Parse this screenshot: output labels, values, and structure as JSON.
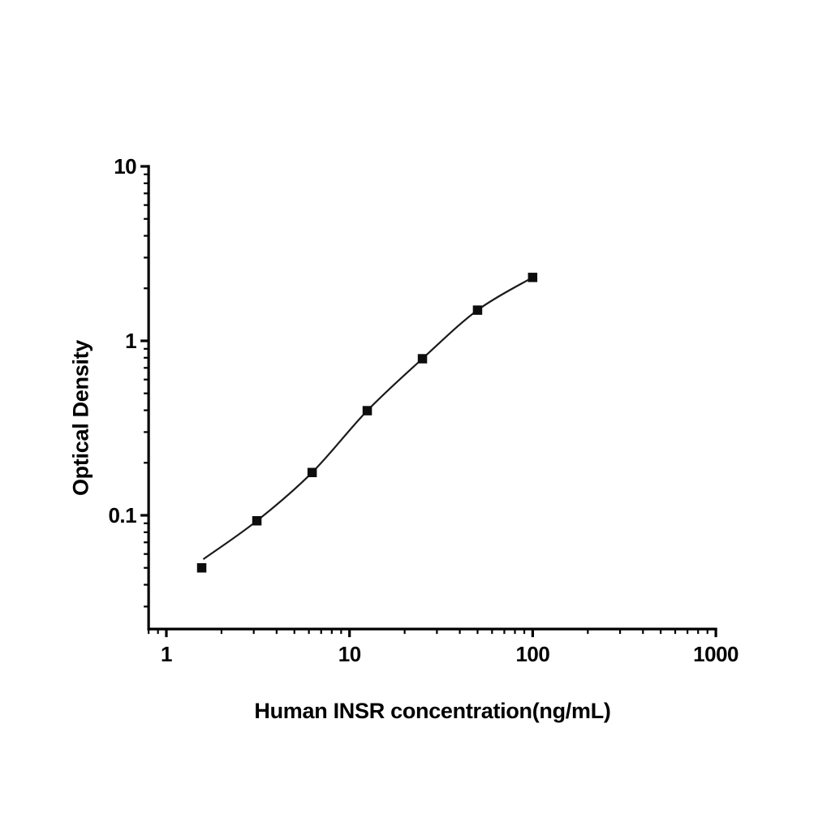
{
  "chart_data": {
    "type": "scatter",
    "title": "",
    "xlabel": "Human INSR concentration(ng/mL)",
    "ylabel": "Optical Density",
    "x_scale": "log",
    "y_scale": "log",
    "grid": false,
    "legend": null,
    "xlim": [
      0.8,
      1000
    ],
    "ylim": [
      0.0223,
      10
    ],
    "x_ticks": {
      "major": [
        1,
        10,
        100,
        1000
      ],
      "labels": [
        "1",
        "10",
        "100",
        "1000"
      ]
    },
    "y_ticks": {
      "major": [
        0.1,
        1,
        10
      ],
      "labels": [
        "0.1",
        "1",
        "10"
      ]
    },
    "x": [
      1.56,
      3.12,
      6.25,
      12.5,
      25,
      50,
      100
    ],
    "y": [
      0.05,
      0.093,
      0.176,
      0.398,
      0.79,
      1.5,
      2.31
    ],
    "curve_start": {
      "x": 1.59,
      "y": 0.056
    },
    "marker": {
      "shape": "filled-square",
      "size": 11.5,
      "color": "#0d0d0d"
    },
    "line": {
      "color": "#1a1a1a",
      "width": 2.2
    },
    "colors": {
      "axis": "#000000",
      "text": "#000000",
      "background": "#ffffff"
    }
  }
}
